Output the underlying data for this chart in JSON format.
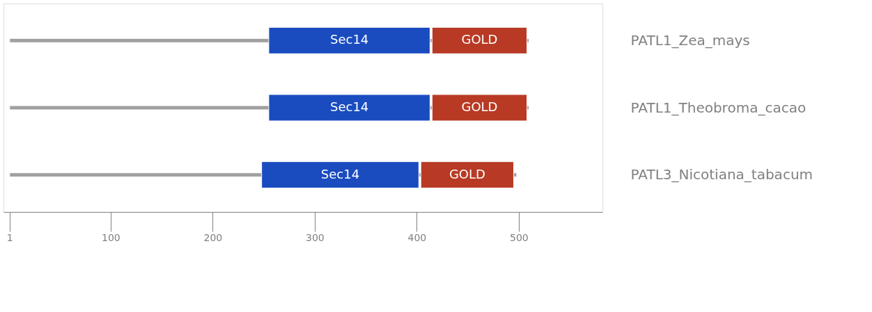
{
  "chart_data": {
    "type": "bar",
    "orientation": "horizontal",
    "categories": [
      "PATL1_Zea_mays",
      "PATL1_Theobroma_cacao",
      "PATL3_Nicotiana_tabacum"
    ],
    "series": [
      {
        "color": "#a0a0a0",
        "base": [
          1,
          1,
          1
        ],
        "values": [
          509,
          509,
          497
        ]
      },
      {
        "color": "#1a4cc0",
        "base": [
          255,
          255,
          248
        ],
        "values": [
          158,
          158,
          154
        ],
        "value_labels": [
          "Sec14",
          "Sec14",
          "Sec14"
        ]
      },
      {
        "color": "#b83a24",
        "base": [
          415,
          415,
          404
        ],
        "values": [
          93,
          93,
          91
        ],
        "value_labels": [
          "GOLD",
          "GOLD",
          "GOLD"
        ]
      }
    ],
    "xlim": [
      -5,
      582
    ],
    "xticks": [
      1,
      100,
      200,
      300,
      400,
      500
    ],
    "grid": false
  }
}
